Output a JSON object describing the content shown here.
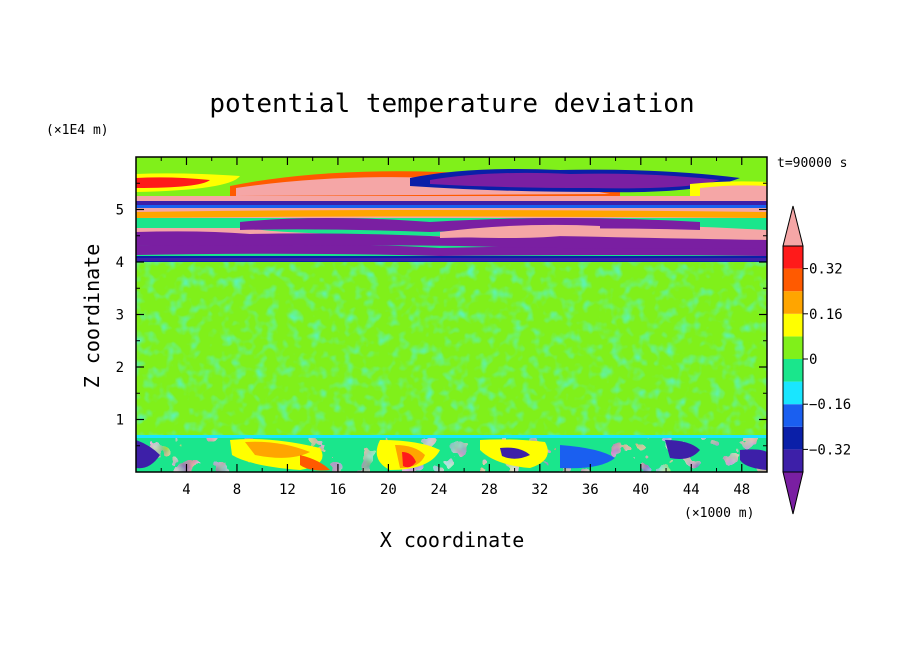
{
  "chart_data": {
    "type": "heatmap",
    "title": "potential temperature deviation",
    "xlabel": "X coordinate",
    "ylabel": "Z coordinate",
    "x_unit": "(×1000 m)",
    "y_unit": "(×1E4 m)",
    "time_label": "t=90000 s",
    "xlim": [
      0,
      50
    ],
    "ylim": [
      0,
      6
    ],
    "x_ticks": [
      "4",
      "8",
      "12",
      "16",
      "20",
      "24",
      "28",
      "32",
      "36",
      "40",
      "44",
      "48"
    ],
    "y_ticks": [
      "1",
      "2",
      "3",
      "4",
      "5"
    ],
    "colorbar": {
      "level_labels": [
        "0.32",
        "0.16",
        "0",
        "−0.16",
        "−0.32"
      ],
      "levels": [
        -0.4,
        -0.32,
        -0.24,
        -0.16,
        -0.08,
        0,
        0.08,
        0.16,
        0.24,
        0.32,
        0.4
      ],
      "colors": [
        "#7a1fa2",
        "#3d1fa8",
        "#0a1fa8",
        "#1a5ff0",
        "#19e6ff",
        "#1ae68c",
        "#80f01a",
        "#ffff00",
        "#ffa500",
        "#ff5a00",
        "#ff1a1a",
        "#f5a6a6"
      ]
    },
    "bands": [
      {
        "z": [
          0.0,
          0.7
        ],
        "pattern": "surface boundary layer: mixed warm (yellow, orange, red) and cold (blue, purple) anomalies"
      },
      {
        "z": [
          0.7,
          4.0
        ],
        "pattern": "near-neutral mottled green (-0.08 to 0.08)"
      },
      {
        "z": [
          4.0,
          4.8
        ],
        "pattern": "alternating strong cold (purple) and warm (pink) layers"
      },
      {
        "z": [
          4.8,
          5.2
        ],
        "pattern": "warm pink layer with thin cold strip near 5.05"
      },
      {
        "z": [
          5.2,
          6.0
        ],
        "pattern": "cold purple lens near x 28-44, warm pink/red layer x 0-12, green/yellow above"
      }
    ],
    "colors": {
      "frame": "#000000",
      "background": "#ffffff"
    }
  }
}
